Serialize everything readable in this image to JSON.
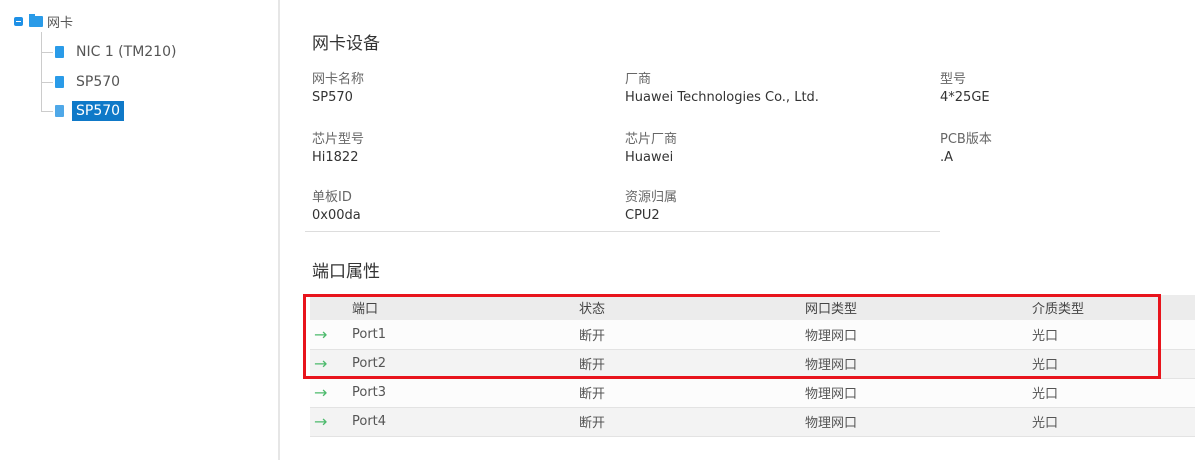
{
  "tree": {
    "root": "网卡",
    "items": [
      {
        "label": "NIC 1 (TM210)",
        "selected": false
      },
      {
        "label": "SP570",
        "selected": false
      },
      {
        "label": "SP570",
        "selected": true
      }
    ]
  },
  "device": {
    "title": "网卡设备",
    "fields": [
      {
        "label": "网卡名称",
        "value": "SP570"
      },
      {
        "label": "厂商",
        "value": "Huawei Technologies Co., Ltd."
      },
      {
        "label": "型号",
        "value": "4*25GE"
      },
      {
        "label": "芯片型号",
        "value": "Hi1822"
      },
      {
        "label": "芯片厂商",
        "value": "Huawei"
      },
      {
        "label": "PCB版本",
        "value": ".A"
      },
      {
        "label": "单板ID",
        "value": "0x00da"
      },
      {
        "label": "资源归属",
        "value": "CPU2"
      }
    ]
  },
  "ports": {
    "title": "端口属性",
    "columns": [
      "端口",
      "状态",
      "网口类型",
      "介质类型"
    ],
    "rows": [
      [
        "Port1",
        "断开",
        "物理网口",
        "光口"
      ],
      [
        "Port2",
        "断开",
        "物理网口",
        "光口"
      ],
      [
        "Port3",
        "断开",
        "物理网口",
        "光口"
      ],
      [
        "Port4",
        "断开",
        "物理网口",
        "光口"
      ]
    ],
    "row_icon": "arrow-right-icon",
    "highlight_color": "#e8141c",
    "highlighted_rows": [
      "Port1",
      "Port2"
    ]
  }
}
